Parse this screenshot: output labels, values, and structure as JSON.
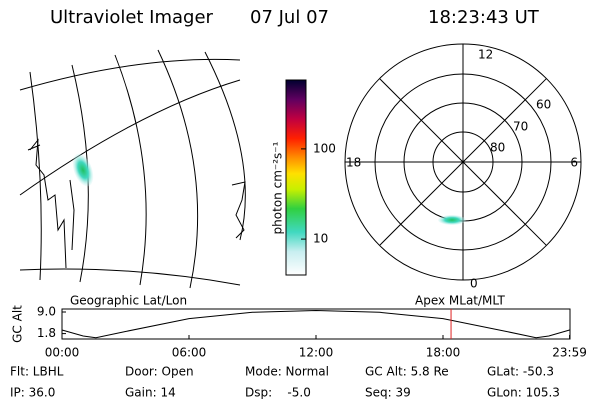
{
  "header": {
    "instrument": "Ultraviolet Imager",
    "date": "07 Jul 07",
    "time": "18:23:43 UT"
  },
  "geo_panel": {
    "label": "Geographic Lat/Lon"
  },
  "colorbar": {
    "label": "photon cm⁻²s⁻¹",
    "scale": "log",
    "lim": [
      4,
      580
    ],
    "ticks": [
      10,
      100
    ]
  },
  "polar_panel": {
    "label": "Apex MLat/MLT",
    "mlt_labels": [
      "12",
      "6",
      "0",
      "18"
    ],
    "lat_labels": [
      "60",
      "70",
      "80"
    ]
  },
  "orbit": {
    "ylabel": "GC Alt",
    "ylim": [
      0,
      10
    ],
    "yticks": [
      {
        "value": 9,
        "label": "9.0"
      },
      1.8
    ],
    "xlim": [
      0,
      24
    ],
    "xticks": [
      {
        "value": 0,
        "label": "00:00"
      },
      {
        "value": 6,
        "label": "06:00"
      },
      {
        "value": 12,
        "label": "12:00"
      },
      {
        "value": 18,
        "label": "18:00"
      },
      {
        "value": 23.98,
        "label": "23:59"
      }
    ],
    "hours": [
      0,
      1,
      1.6,
      3,
      6,
      9,
      12,
      15,
      18,
      21,
      22.4,
      23,
      23.98
    ],
    "alt": [
      3,
      1,
      0.4,
      2.5,
      6.8,
      8.9,
      9.5,
      8.9,
      6.8,
      2.5,
      0.4,
      1,
      3
    ],
    "marker_hour": 18.38,
    "marker_color": "#e02020"
  },
  "footer": {
    "rows": [
      [
        "Flt: LBHL",
        "Door: Open",
        "Mode: Normal",
        "GC Alt: 5.8 Re",
        "GLat: -50.3"
      ],
      [
        "IP: 36.0",
        "Gain: 14",
        "Dsp:    -5.0",
        "Seq: 39",
        "GLon: 105.3"
      ]
    ]
  }
}
